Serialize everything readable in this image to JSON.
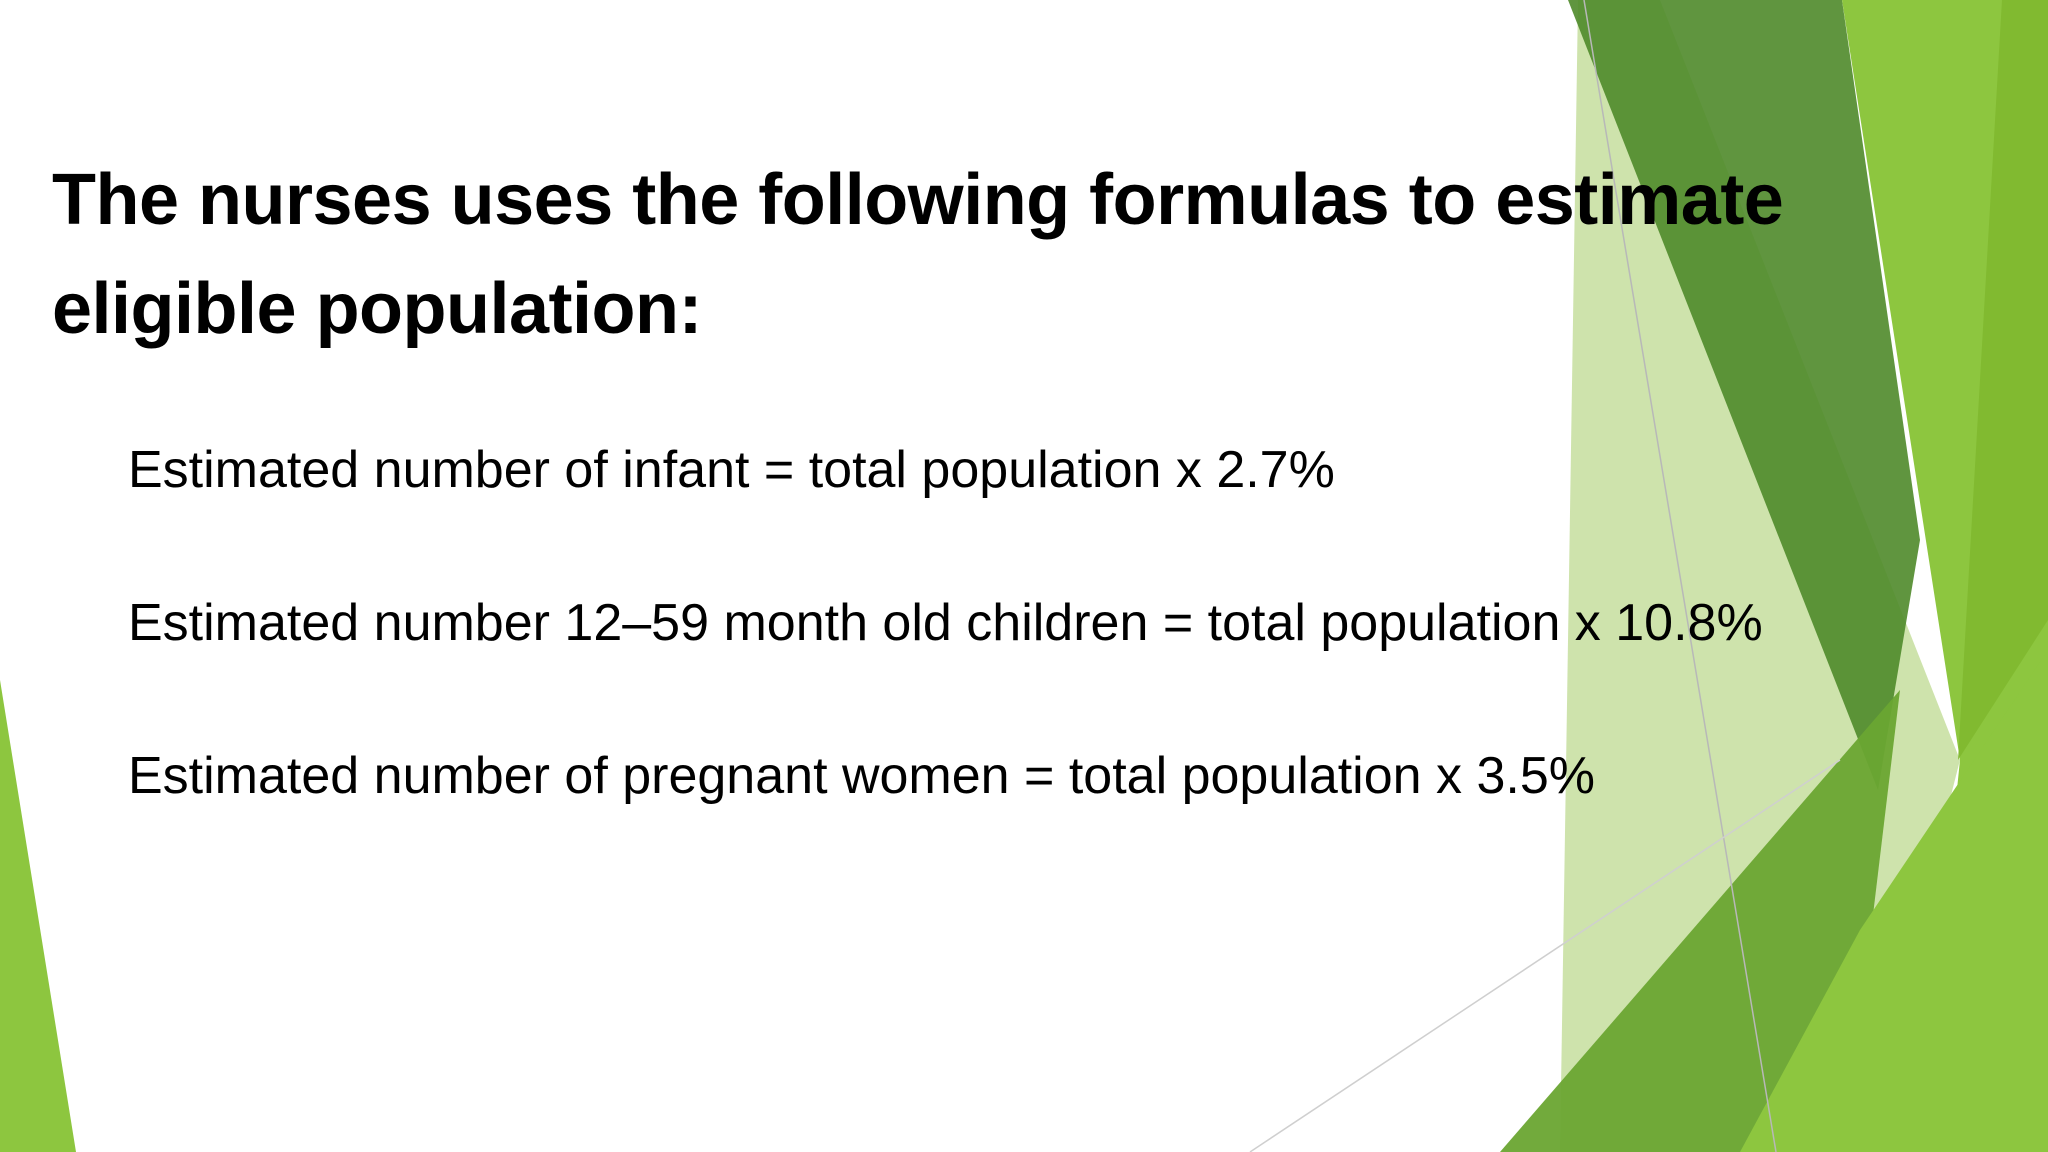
{
  "slide": {
    "title": "The nurses uses the following formulas to estimate eligible population:",
    "formulas": [
      "Estimated number of infant = total population x 2.7%",
      "Estimated number 12–59 month old children = total population x 10.8%",
      "Estimated number of pregnant women = total population x 3.5%"
    ]
  },
  "theme": {
    "background": "#ffffff",
    "text": "#000000",
    "green_dark": "#4f8a2a",
    "green_mid": "#6aa532",
    "green_light": "#8dc63f",
    "green_pale": "#c5de9e"
  }
}
